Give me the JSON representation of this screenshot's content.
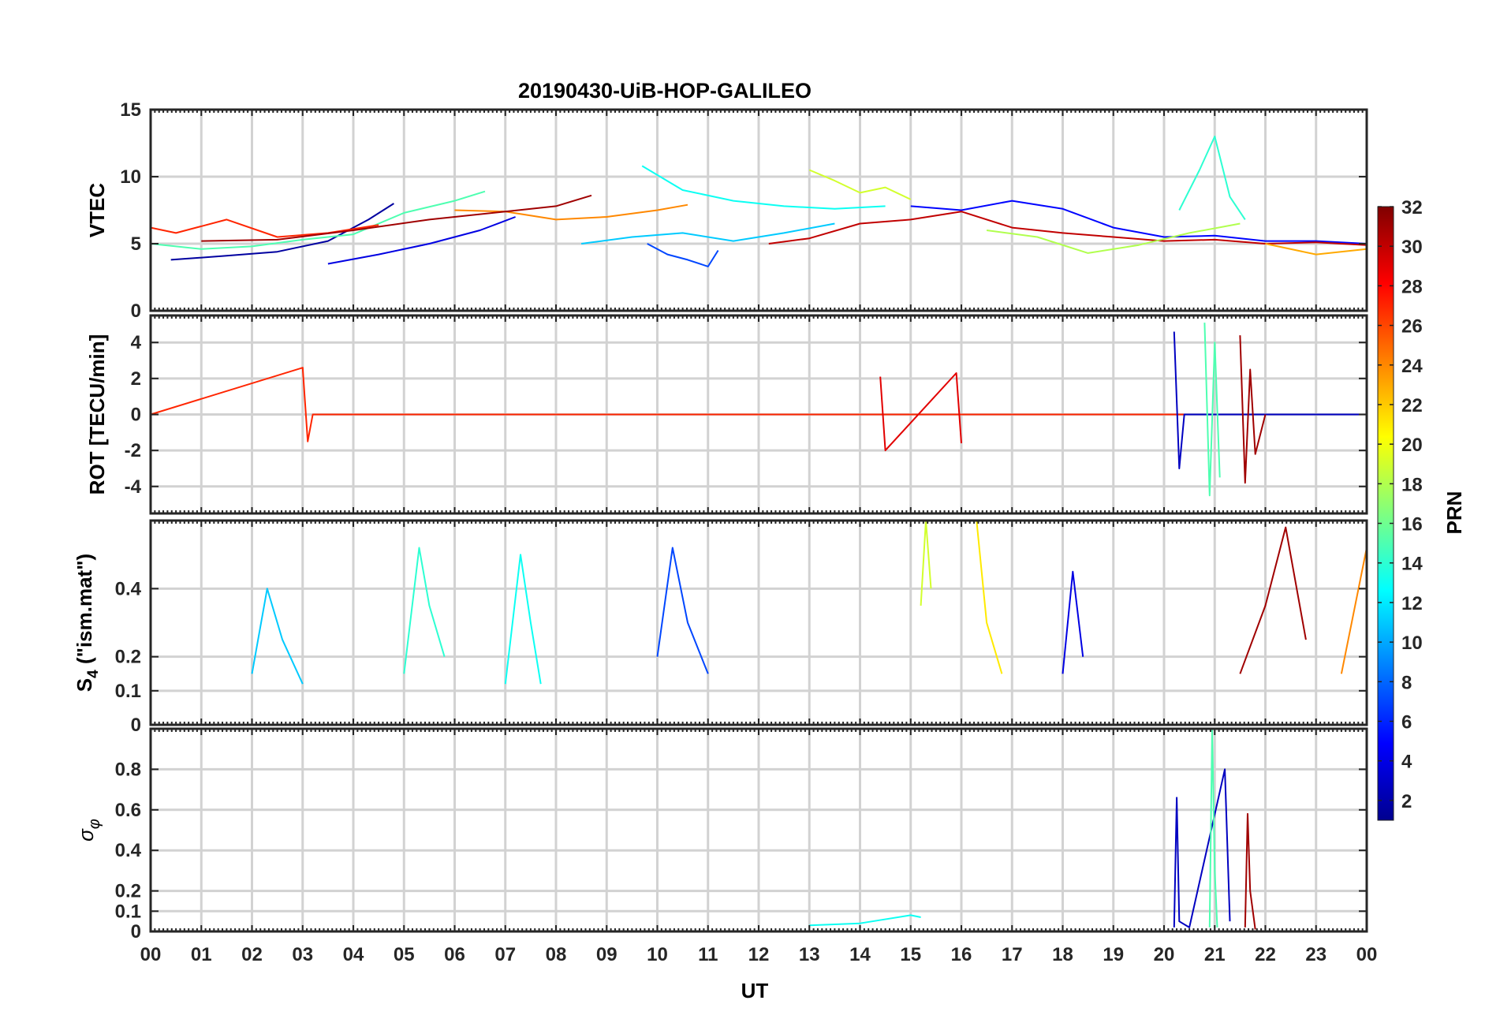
{
  "title": "20190430-UiB-HOP-GALILEO",
  "colorbar": {
    "label": "PRN",
    "min": 1,
    "max": 32,
    "ticks": [
      2,
      4,
      6,
      8,
      10,
      12,
      14,
      16,
      18,
      20,
      22,
      24,
      26,
      28,
      30,
      32
    ],
    "colormap": "jet"
  },
  "x_axis": {
    "label": "UT",
    "range": [
      0,
      24
    ],
    "tick_labels": [
      "00",
      "01",
      "02",
      "03",
      "04",
      "05",
      "06",
      "07",
      "08",
      "09",
      "10",
      "11",
      "12",
      "13",
      "14",
      "15",
      "16",
      "17",
      "18",
      "19",
      "20",
      "21",
      "22",
      "23",
      "00"
    ]
  },
  "chart_data": [
    {
      "type": "line",
      "panel": "VTEC",
      "ylabel": "VTEC",
      "ylim": [
        0,
        15
      ],
      "yticks": [
        0,
        5,
        10,
        15
      ],
      "grid": true,
      "series": [
        {
          "prn": 2,
          "x": [
            0.4,
            1.5,
            2.5,
            3.5,
            4.3,
            4.8
          ],
          "y": [
            3.8,
            4.1,
            4.4,
            5.2,
            6.8,
            8.0
          ]
        },
        {
          "prn": 4,
          "x": [
            3.5,
            4.5,
            5.5,
            6.5,
            7.2
          ],
          "y": [
            3.5,
            4.2,
            5.0,
            6.0,
            7.0
          ]
        },
        {
          "prn": 7,
          "x": [
            9.8,
            10.2,
            10.6,
            11.0,
            11.2
          ],
          "y": [
            5.0,
            4.2,
            3.8,
            3.3,
            4.5
          ]
        },
        {
          "prn": 11,
          "x": [
            8.5,
            9.5,
            10.5,
            11.5,
            12.5,
            13.5
          ],
          "y": [
            5.0,
            5.5,
            5.8,
            5.2,
            5.8,
            6.5
          ]
        },
        {
          "prn": 13,
          "x": [
            9.7,
            10.5,
            11.5,
            12.5,
            13.5,
            14.5
          ],
          "y": [
            10.8,
            9.0,
            8.2,
            7.8,
            7.6,
            7.8
          ]
        },
        {
          "prn": 15,
          "x": [
            0.0,
            1.0,
            2.0,
            3.0,
            4.0,
            5.0,
            6.0,
            6.6
          ],
          "y": [
            5.0,
            4.6,
            4.8,
            5.3,
            5.7,
            7.3,
            8.2,
            8.9
          ]
        },
        {
          "prn": 19,
          "x": [
            13.0,
            13.5,
            14.0,
            14.5,
            15.0
          ],
          "y": [
            10.5,
            9.7,
            8.8,
            9.2,
            8.3
          ]
        },
        {
          "prn": 24,
          "x": [
            6.0,
            7.0,
            8.0,
            9.0,
            10.0,
            10.6
          ],
          "y": [
            7.5,
            7.4,
            6.8,
            7.0,
            7.5,
            7.9
          ]
        },
        {
          "prn": 27,
          "x": [
            0.0,
            0.5,
            1.5,
            2.5,
            3.5,
            4.5
          ],
          "y": [
            6.2,
            5.8,
            6.8,
            5.5,
            5.8,
            6.4
          ]
        },
        {
          "prn": 31,
          "x": [
            1.0,
            2.5,
            4.0,
            5.5,
            7.0,
            8.0,
            8.7
          ],
          "y": [
            5.2,
            5.3,
            6.0,
            6.8,
            7.4,
            7.8,
            8.6
          ]
        },
        {
          "prn": 5,
          "x": [
            15.0,
            16.0,
            17.0,
            18.0,
            19.0,
            20.0,
            21.0,
            22.0,
            23.0,
            24.0
          ],
          "y": [
            7.8,
            7.5,
            8.2,
            7.6,
            6.2,
            5.5,
            5.6,
            5.2,
            5.2,
            5.0
          ]
        },
        {
          "prn": 30,
          "x": [
            12.2,
            13.0,
            14.0,
            15.0,
            16.0,
            17.0,
            18.0,
            19.0,
            20.0,
            21.0,
            22.0,
            23.0,
            24.0
          ],
          "y": [
            5.0,
            5.4,
            6.5,
            6.8,
            7.4,
            6.2,
            5.8,
            5.5,
            5.2,
            5.3,
            5.0,
            5.1,
            4.9
          ]
        },
        {
          "prn": 18,
          "x": [
            16.5,
            17.5,
            18.5,
            19.5,
            20.5,
            21.5
          ],
          "y": [
            6.0,
            5.5,
            4.3,
            4.9,
            5.8,
            6.5
          ]
        },
        {
          "prn": 14,
          "x": [
            20.3,
            20.7,
            21.0,
            21.3,
            21.6
          ],
          "y": [
            7.5,
            10.5,
            13.0,
            8.5,
            6.8
          ]
        },
        {
          "prn": 23,
          "x": [
            22.0,
            23.0,
            24.0
          ],
          "y": [
            5.0,
            4.2,
            4.6
          ]
        }
      ]
    },
    {
      "type": "line",
      "panel": "ROT",
      "ylabel": "ROT [TECU/min]",
      "ylim": [
        -5.5,
        5.5
      ],
      "yticks": [
        -4,
        -2,
        0,
        2,
        4
      ],
      "grid": true,
      "series": [
        {
          "prn": 27,
          "x": [
            0.0,
            3.0,
            3.1,
            3.2,
            24.0
          ],
          "y": [
            0.0,
            2.6,
            -1.5,
            0.0,
            0.0
          ]
        },
        {
          "prn": 3,
          "x": [
            20.2,
            20.3,
            20.4,
            24.0
          ],
          "y": [
            4.6,
            -3.0,
            0.0,
            0.0
          ]
        },
        {
          "prn": 15,
          "x": [
            20.8,
            20.9,
            21.0,
            21.1
          ],
          "y": [
            5.1,
            -4.5,
            4.0,
            -3.5
          ]
        },
        {
          "prn": 31,
          "x": [
            21.5,
            21.6,
            21.7,
            21.8,
            22.0
          ],
          "y": [
            4.4,
            -3.8,
            2.5,
            -2.2,
            0.0
          ]
        },
        {
          "prn": 29,
          "x": [
            14.4,
            14.5,
            15.9,
            16.0
          ],
          "y": [
            2.1,
            -2.0,
            2.3,
            -1.6
          ]
        }
      ]
    },
    {
      "type": "line",
      "panel": "S4",
      "ylabel": "S4 (\"ism.mat\")",
      "ylim": [
        0,
        0.6
      ],
      "yticks": [
        0,
        0.1,
        0.2,
        0.4
      ],
      "grid": true,
      "series": [
        {
          "prn": 11,
          "x": [
            2.0,
            2.3,
            2.6,
            3.0
          ],
          "y": [
            0.15,
            0.4,
            0.25,
            0.12
          ]
        },
        {
          "prn": 14,
          "x": [
            5.0,
            5.3,
            5.5,
            5.8
          ],
          "y": [
            0.15,
            0.52,
            0.35,
            0.2
          ]
        },
        {
          "prn": 13,
          "x": [
            7.0,
            7.3,
            7.5,
            7.7
          ],
          "y": [
            0.12,
            0.5,
            0.3,
            0.12
          ]
        },
        {
          "prn": 7,
          "x": [
            10.0,
            10.3,
            10.6,
            11.0
          ],
          "y": [
            0.2,
            0.52,
            0.3,
            0.15
          ]
        },
        {
          "prn": 19,
          "x": [
            15.2,
            15.3,
            15.4
          ],
          "y": [
            0.35,
            0.6,
            0.4
          ]
        },
        {
          "prn": 21,
          "x": [
            16.3,
            16.5,
            16.8
          ],
          "y": [
            0.6,
            0.3,
            0.15
          ]
        },
        {
          "prn": 4,
          "x": [
            18.0,
            18.2,
            18.4
          ],
          "y": [
            0.15,
            0.45,
            0.2
          ]
        },
        {
          "prn": 31,
          "x": [
            21.5,
            22.0,
            22.4,
            22.8
          ],
          "y": [
            0.15,
            0.35,
            0.58,
            0.25
          ]
        },
        {
          "prn": 24,
          "x": [
            23.5,
            24.0
          ],
          "y": [
            0.15,
            0.52
          ]
        }
      ]
    },
    {
      "type": "line",
      "panel": "sigma_phi",
      "ylabel": "σφ",
      "ylim": [
        0,
        1.0
      ],
      "yticks": [
        0,
        0.1,
        0.2,
        0.4,
        0.6,
        0.8
      ],
      "grid": true,
      "series": [
        {
          "prn": 3,
          "x": [
            20.2,
            20.25,
            20.3,
            20.5,
            21.2,
            21.3
          ],
          "y": [
            0.02,
            0.66,
            0.05,
            0.02,
            0.8,
            0.05
          ]
        },
        {
          "prn": 15,
          "x": [
            20.9,
            20.95,
            21.0,
            21.05
          ],
          "y": [
            0.02,
            1.0,
            0.3,
            0.02
          ]
        },
        {
          "prn": 31,
          "x": [
            21.6,
            21.65,
            21.7,
            21.8
          ],
          "y": [
            0.02,
            0.58,
            0.2,
            0.01
          ]
        },
        {
          "prn": 13,
          "x": [
            13.0,
            14.0,
            15.0,
            15.2
          ],
          "y": [
            0.03,
            0.04,
            0.08,
            0.07
          ]
        }
      ]
    }
  ]
}
